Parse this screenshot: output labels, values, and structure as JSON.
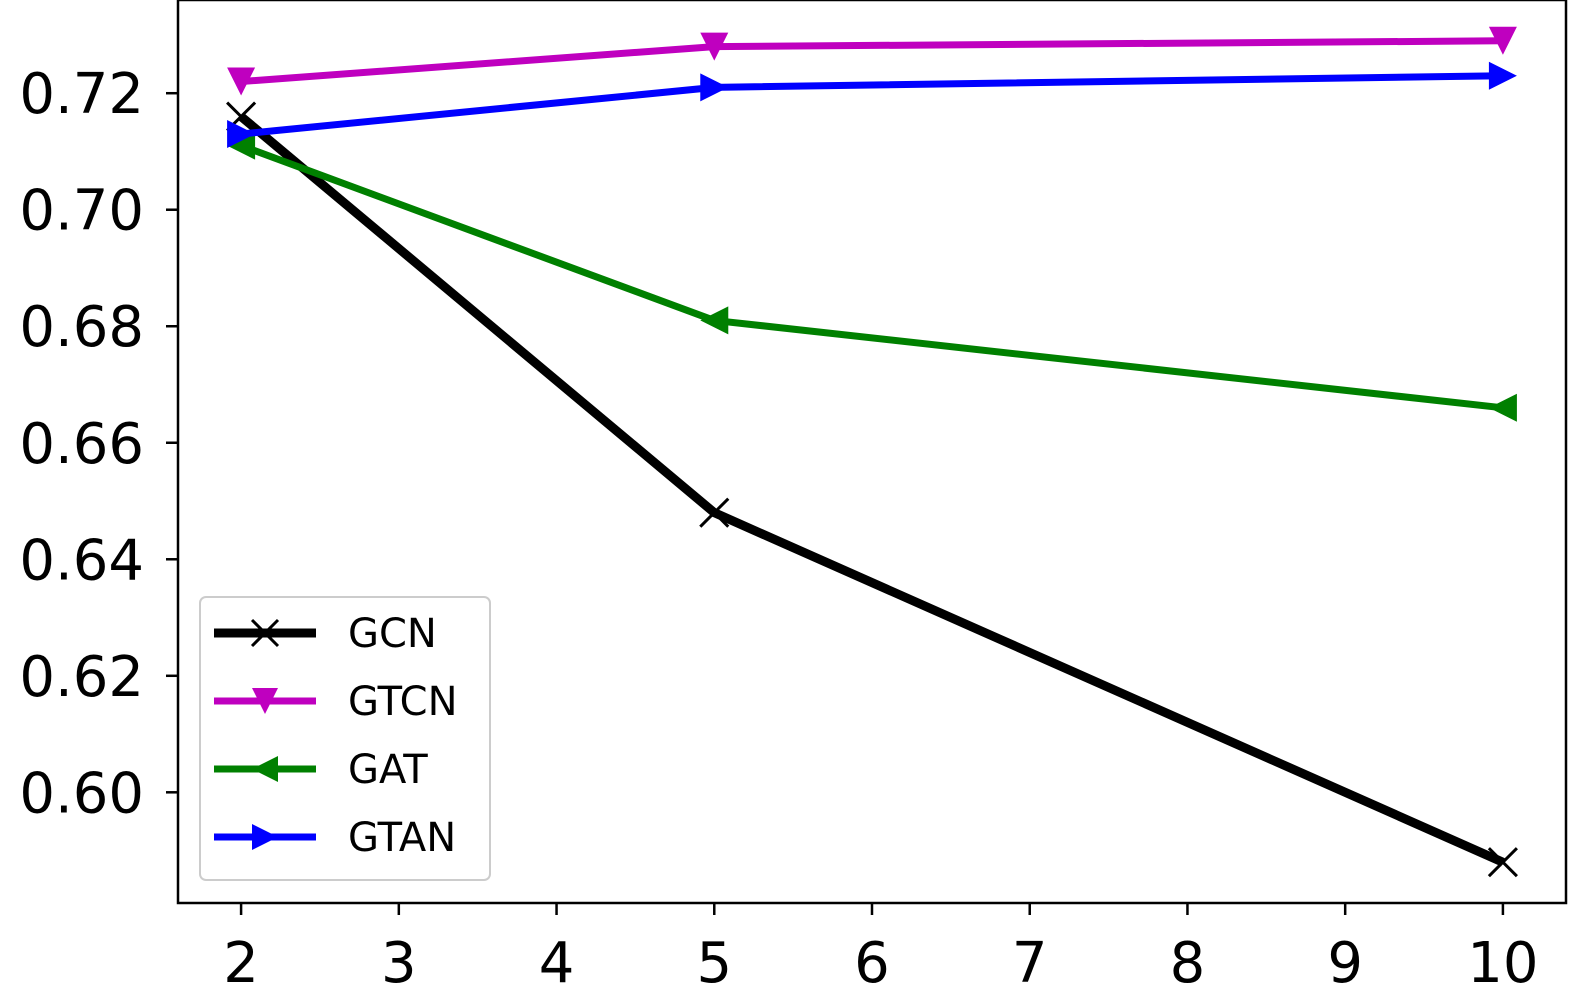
{
  "chart_data": {
    "type": "line",
    "title": "",
    "xlabel": "",
    "ylabel": "",
    "x": [
      2,
      5,
      10
    ],
    "xlim": [
      1.6,
      10.4
    ],
    "ylim": [
      0.581,
      0.736
    ],
    "xticks": [
      2,
      3,
      4,
      5,
      6,
      7,
      8,
      9,
      10
    ],
    "xtick_labels": [
      "2",
      "3",
      "4",
      "5",
      "6",
      "7",
      "8",
      "9",
      "10"
    ],
    "yticks": [
      0.6,
      0.62,
      0.64,
      0.66,
      0.68,
      0.7,
      0.72
    ],
    "ytick_labels": [
      "0.60",
      "0.62",
      "0.64",
      "0.66",
      "0.68",
      "0.70",
      "0.72"
    ],
    "grid": false,
    "legend_position": "lower-left",
    "series": [
      {
        "name": "GCN",
        "color": "#000000",
        "marker": "x",
        "values": [
          0.716,
          0.648,
          0.588
        ]
      },
      {
        "name": "GTCN",
        "color": "#bf00bf",
        "marker": "triangle-down",
        "values": [
          0.722,
          0.728,
          0.729
        ]
      },
      {
        "name": "GAT",
        "color": "#008000",
        "marker": "triangle-left",
        "values": [
          0.711,
          0.681,
          0.666
        ]
      },
      {
        "name": "GTAN",
        "color": "#0000ff",
        "marker": "triangle-right",
        "values": [
          0.713,
          0.721,
          0.723
        ]
      }
    ]
  }
}
